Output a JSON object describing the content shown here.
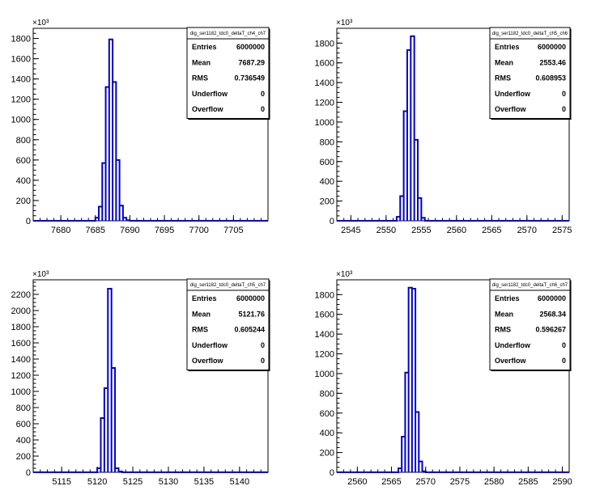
{
  "colors": {
    "histogram": "#0000cc",
    "frame": "#000000",
    "background": "#ffffff"
  },
  "stats_labels": [
    "Entries",
    "Mean",
    "RMS",
    "Underflow",
    "Overflow"
  ],
  "chart_data": [
    {
      "type": "bar",
      "title": "dig_ser1182_tdc0_deltaT_ch4_ch7",
      "y_multiplier": "×10³",
      "xlim": [
        7676,
        7710
      ],
      "ylim": [
        0,
        1900
      ],
      "x_ticks": [
        7680,
        7685,
        7690,
        7695,
        7700,
        7705
      ],
      "y_ticks": [
        0,
        200,
        400,
        600,
        800,
        1000,
        1200,
        1400,
        1600,
        1800
      ],
      "bin_width": 0.5,
      "bins": [
        {
          "x": 7685.0,
          "y": 30
        },
        {
          "x": 7685.5,
          "y": 140
        },
        {
          "x": 7686.0,
          "y": 570
        },
        {
          "x": 7686.5,
          "y": 1320
        },
        {
          "x": 7687.0,
          "y": 1790
        },
        {
          "x": 7687.5,
          "y": 1370
        },
        {
          "x": 7688.0,
          "y": 600
        },
        {
          "x": 7688.5,
          "y": 150
        },
        {
          "x": 7689.0,
          "y": 30
        },
        {
          "x": 7689.5,
          "y": 5
        }
      ],
      "stats": {
        "Entries": "6000000",
        "Mean": "7687.29",
        "RMS": "0.736549",
        "Underflow": "0",
        "Overflow": "0"
      }
    },
    {
      "type": "bar",
      "title": "dig_ser1182_tdc0_deltaT_ch5_ch6",
      "y_multiplier": "×10³",
      "xlim": [
        2543,
        2576
      ],
      "ylim": [
        0,
        1950
      ],
      "x_ticks": [
        2545,
        2550,
        2555,
        2560,
        2565,
        2570,
        2575
      ],
      "y_ticks": [
        0,
        200,
        400,
        600,
        800,
        1000,
        1200,
        1400,
        1600,
        1800
      ],
      "bin_width": 0.5,
      "bins": [
        {
          "x": 2551.5,
          "y": 40
        },
        {
          "x": 2552.0,
          "y": 250
        },
        {
          "x": 2552.5,
          "y": 1110
        },
        {
          "x": 2553.0,
          "y": 1730
        },
        {
          "x": 2553.5,
          "y": 1870
        },
        {
          "x": 2554.0,
          "y": 820
        },
        {
          "x": 2554.5,
          "y": 230
        },
        {
          "x": 2555.0,
          "y": 30
        }
      ],
      "stats": {
        "Entries": "6000000",
        "Mean": "2553.46",
        "RMS": "0.608953",
        "Underflow": "0",
        "Overflow": "0"
      }
    },
    {
      "type": "bar",
      "title": "dig_ser1182_tdc0_deltaT_ch5_ch7",
      "y_multiplier": "×10³",
      "xlim": [
        5111,
        5144
      ],
      "ylim": [
        0,
        2380
      ],
      "x_ticks": [
        5115,
        5120,
        5125,
        5130,
        5135,
        5140
      ],
      "y_ticks": [
        0,
        200,
        400,
        600,
        800,
        1000,
        1200,
        1400,
        1600,
        1800,
        2000,
        2200
      ],
      "bin_width": 0.5,
      "bins": [
        {
          "x": 5120.0,
          "y": 50
        },
        {
          "x": 5120.5,
          "y": 670
        },
        {
          "x": 5121.0,
          "y": 1040
        },
        {
          "x": 5121.5,
          "y": 2270
        },
        {
          "x": 5122.0,
          "y": 1290
        },
        {
          "x": 5122.5,
          "y": 50
        },
        {
          "x": 5123.0,
          "y": 10
        }
      ],
      "stats": {
        "Entries": "6000000",
        "Mean": "5121.76",
        "RMS": "0.605244",
        "Underflow": "0",
        "Overflow": "0"
      }
    },
    {
      "type": "bar",
      "title": "dig_ser1182_tdc0_deltaT_ch6_ch7",
      "y_multiplier": "×10³",
      "xlim": [
        2557,
        2591
      ],
      "ylim": [
        0,
        1950
      ],
      "x_ticks": [
        2560,
        2565,
        2570,
        2575,
        2580,
        2585,
        2590
      ],
      "y_ticks": [
        0,
        200,
        400,
        600,
        800,
        1000,
        1200,
        1400,
        1600,
        1800
      ],
      "bin_width": 0.5,
      "bins": [
        {
          "x": 2566.0,
          "y": 40
        },
        {
          "x": 2566.5,
          "y": 360
        },
        {
          "x": 2567.0,
          "y": 1010
        },
        {
          "x": 2567.5,
          "y": 1870
        },
        {
          "x": 2568.0,
          "y": 1860
        },
        {
          "x": 2568.5,
          "y": 610
        },
        {
          "x": 2569.0,
          "y": 110
        },
        {
          "x": 2569.5,
          "y": 10
        }
      ],
      "stats": {
        "Entries": "6000000",
        "Mean": "2568.34",
        "RMS": "0.596267",
        "Underflow": "0",
        "Overflow": "0"
      }
    }
  ]
}
